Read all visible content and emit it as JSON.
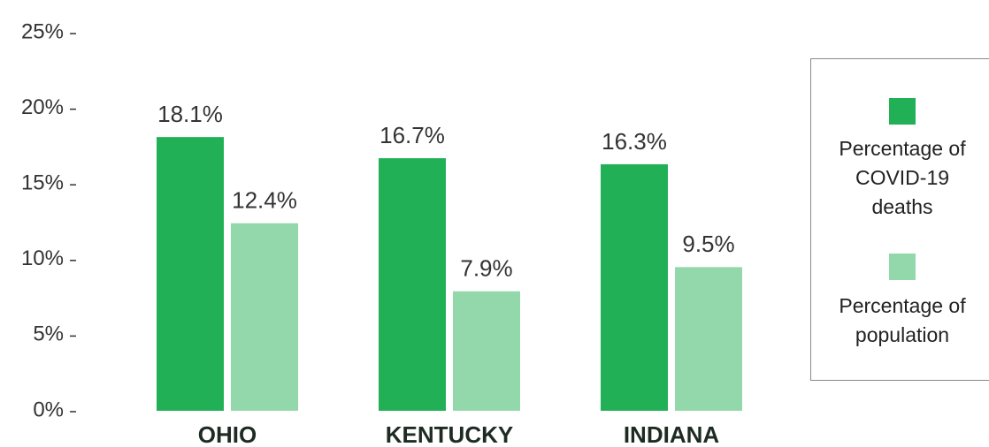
{
  "chart_data": {
    "type": "bar",
    "categories": [
      "OHIO",
      "KENTUCKY",
      "INDIANA"
    ],
    "series": [
      {
        "name": "Percentage of COVID-19 deaths",
        "color": "#22b057",
        "values": [
          18.1,
          16.7,
          16.3
        ],
        "value_labels": [
          "18.1%",
          "16.7%",
          "16.3%"
        ]
      },
      {
        "name": "Percentage of population",
        "color": "#93d8aa",
        "values": [
          12.4,
          7.9,
          9.5
        ],
        "value_labels": [
          "12.4%",
          "7.9%",
          "9.5%"
        ]
      }
    ],
    "ylim": [
      0,
      25
    ],
    "yticks": [
      {
        "value": 0,
        "label": "0%"
      },
      {
        "value": 5,
        "label": "5%"
      },
      {
        "value": 10,
        "label": "10%"
      },
      {
        "value": 15,
        "label": "15%"
      },
      {
        "value": 20,
        "label": "20%"
      },
      {
        "value": 25,
        "label": "25%"
      }
    ],
    "grid": false,
    "legend": "right"
  }
}
